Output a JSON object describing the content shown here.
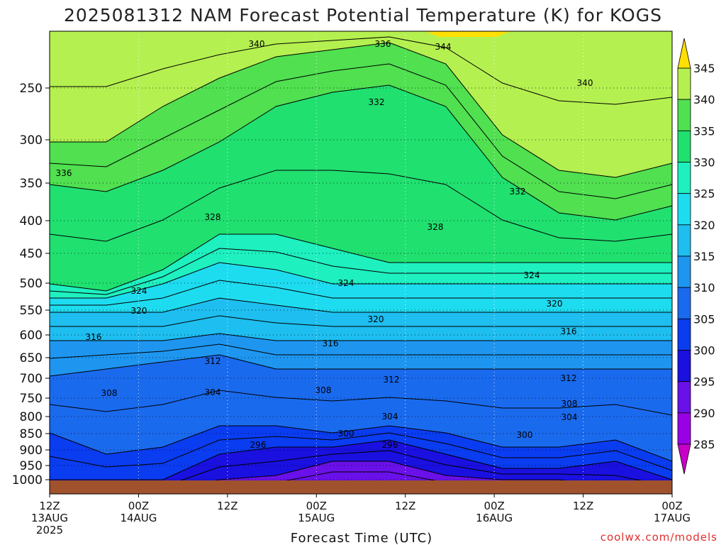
{
  "chart_data": {
    "type": "heatmap",
    "title": "2025081312 NAM Forecast Potential Temperature (K) for KOGS",
    "xlabel": "Forecast Time (UTC)",
    "ylabel": "",
    "credit": "coolwx.com/models",
    "y_ticks": [
      "250",
      "300",
      "350",
      "400",
      "450",
      "500",
      "550",
      "600",
      "650",
      "700",
      "750",
      "800",
      "850",
      "900",
      "950",
      "1000"
    ],
    "x_ticks": [
      {
        "line1": "12Z",
        "line2": "13AUG",
        "line3": "2025"
      },
      {
        "line1": "00Z",
        "line2": "14AUG",
        "line3": ""
      },
      {
        "line1": "12Z",
        "line2": "",
        "line3": ""
      },
      {
        "line1": "00Z",
        "line2": "15AUG",
        "line3": ""
      },
      {
        "line1": "12Z",
        "line2": "",
        "line3": ""
      },
      {
        "line1": "00Z",
        "line2": "16AUG",
        "line3": ""
      },
      {
        "line1": "12Z",
        "line2": "",
        "line3": ""
      },
      {
        "line1": "00Z",
        "line2": "17AUG",
        "line3": ""
      }
    ],
    "colorbar": {
      "labels": [
        "345",
        "340",
        "335",
        "330",
        "325",
        "320",
        "315",
        "310",
        "305",
        "300",
        "295",
        "290",
        "285"
      ],
      "bands": [
        {
          "min": 280,
          "max": 285,
          "color": "#c800c8"
        },
        {
          "min": 285,
          "max": 290,
          "color": "#9a00e6"
        },
        {
          "min": 290,
          "max": 295,
          "color": "#6a10e8"
        },
        {
          "min": 295,
          "max": 300,
          "color": "#1a10e0"
        },
        {
          "min": 300,
          "max": 305,
          "color": "#0a3cf0"
        },
        {
          "min": 305,
          "max": 310,
          "color": "#1a6aee"
        },
        {
          "min": 310,
          "max": 315,
          "color": "#1e96f0"
        },
        {
          "min": 315,
          "max": 320,
          "color": "#1ebef0"
        },
        {
          "min": 320,
          "max": 325,
          "color": "#1edcf0"
        },
        {
          "min": 325,
          "max": 330,
          "color": "#1ef0c0"
        },
        {
          "min": 330,
          "max": 335,
          "color": "#20e070"
        },
        {
          "min": 335,
          "max": 340,
          "color": "#50e050"
        },
        {
          "min": 340,
          "max": 345,
          "color": "#b4f050"
        },
        {
          "min": 345,
          "max": 350,
          "color": "#ffe000"
        }
      ]
    },
    "contour_labels": [
      {
        "x": 0,
        "p": 285,
        "label": "340"
      },
      {
        "x": 0,
        "p": 285,
        "label": "336"
      },
      {
        "x": 0,
        "p": 285,
        "label": "344"
      },
      {
        "x": 0,
        "p": 285,
        "label": "332"
      },
      {
        "x": 0,
        "p": 285,
        "label": "340"
      },
      {
        "x": 0,
        "p": 285,
        "label": "336"
      },
      {
        "x": 0,
        "p": 285,
        "label": "332"
      },
      {
        "x": 0,
        "p": 285,
        "label": "328"
      },
      {
        "x": 0,
        "p": 285,
        "label": "328"
      },
      {
        "x": 0,
        "p": 285,
        "label": "324"
      },
      {
        "x": 0,
        "p": 285,
        "label": "324"
      },
      {
        "x": 0,
        "p": 285,
        "label": "324"
      },
      {
        "x": 0,
        "p": 285,
        "label": "320"
      },
      {
        "x": 0,
        "p": 285,
        "label": "320"
      },
      {
        "x": 0,
        "p": 285,
        "label": "320"
      },
      {
        "x": 0,
        "p": 285,
        "label": "316"
      },
      {
        "x": 0,
        "p": 285,
        "label": "316"
      },
      {
        "x": 0,
        "p": 285,
        "label": "316"
      },
      {
        "x": 0,
        "p": 285,
        "label": "312"
      },
      {
        "x": 0,
        "p": 285,
        "label": "312"
      },
      {
        "x": 0,
        "p": 285,
        "label": "312"
      },
      {
        "x": 0,
        "p": 285,
        "label": "308"
      },
      {
        "x": 0,
        "p": 285,
        "label": "304"
      },
      {
        "x": 0,
        "p": 285,
        "label": "308"
      },
      {
        "x": 0,
        "p": 285,
        "label": "304"
      },
      {
        "x": 0,
        "p": 285,
        "label": "308"
      },
      {
        "x": 0,
        "p": 285,
        "label": "304"
      },
      {
        "x": 0,
        "p": 285,
        "label": "300"
      },
      {
        "x": 0,
        "p": 285,
        "label": "300"
      },
      {
        "x": 0,
        "p": 285,
        "label": "296"
      },
      {
        "x": 0,
        "p": 285,
        "label": "296"
      }
    ]
  }
}
